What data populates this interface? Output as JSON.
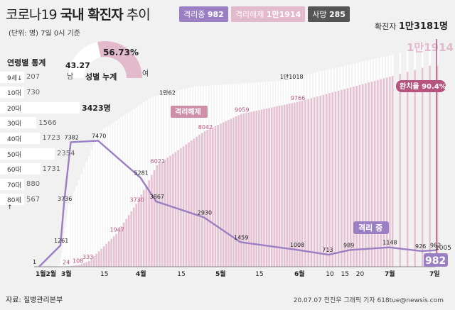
{
  "title": {
    "main_a": "코로나19 ",
    "main_b": "국내 확진자",
    "main_c": " 추이"
  },
  "unit_note": "(단위: 명) 7일 0시 기준",
  "badges": {
    "isolating": {
      "label": "격리중",
      "value": "982"
    },
    "released": {
      "label": "격리해제",
      "value": "1만1914"
    },
    "deaths": {
      "label": "사망",
      "value": "285"
    }
  },
  "total": {
    "label": "확진자",
    "value": "1만3181명"
  },
  "age_stats": {
    "title": "연령별 통계",
    "rows": [
      {
        "label": "9세↓",
        "value": "207",
        "n": 207
      },
      {
        "label": "10대",
        "value": "730",
        "n": 730
      },
      {
        "label": "20대",
        "value": "3423명",
        "n": 3423
      },
      {
        "label": "30대",
        "value": "1566",
        "n": 1566
      },
      {
        "label": "40대",
        "value": "1723",
        "n": 1723
      },
      {
        "label": "50대",
        "value": "2354",
        "n": 2354
      },
      {
        "label": "60대",
        "value": "1731",
        "n": 1731
      },
      {
        "label": "70대",
        "value": "880",
        "n": 880
      },
      {
        "label": "80세↑",
        "value": "567",
        "n": 567
      }
    ]
  },
  "sex_stats": {
    "title": "성별 누계",
    "male_pct": "43.27",
    "female_pct": "56.73%",
    "male_label": "남",
    "female_label": "여",
    "female_fraction": 0.5673
  },
  "colors": {
    "isolating": "#9b7fc3",
    "released": "#e3b9cc",
    "deaths": "#555555",
    "total_bar": "#ffffff",
    "accent": "#b5547c"
  },
  "chart_data": {
    "type": "bar",
    "title": "코로나19 국내 확진자 추이",
    "ylim": [
      0,
      13500
    ],
    "x_ticks": [
      "1월2월",
      "3월",
      "15",
      "4월",
      "15",
      "5월",
      "15",
      "6월",
      "10",
      "15",
      "20",
      "7월",
      "7일"
    ],
    "series": [
      {
        "name": "격리해제",
        "points": [
          {
            "x": "03-01",
            "y": 24
          },
          {
            "x": "03-05",
            "y": 108
          },
          {
            "x": "03-09",
            "y": 333
          },
          {
            "x": "03-20",
            "y": 1947
          },
          {
            "x": "03-28",
            "y": 3730
          },
          {
            "x": "04-06",
            "y": 6021
          },
          {
            "x": "04-24",
            "y": 8042
          },
          {
            "x": "05-08",
            "y": 9059
          },
          {
            "x": "05-30",
            "y": 9766
          },
          {
            "x": "07-06",
            "y": 11914
          }
        ]
      },
      {
        "name": "격리 중",
        "points": [
          {
            "x": "01-20",
            "y": 1
          },
          {
            "x": "02-21",
            "y": 1261
          },
          {
            "x": "02-25",
            "y": 3736
          },
          {
            "x": "03-02",
            "y": 7382
          },
          {
            "x": "03-13",
            "y": 7470
          },
          {
            "x": "03-30",
            "y": 5281
          },
          {
            "x": "04-06",
            "y": 3867
          },
          {
            "x": "04-24",
            "y": 2930
          },
          {
            "x": "05-08",
            "y": 1459
          },
          {
            "x": "05-30",
            "y": 1008
          },
          {
            "x": "06-10",
            "y": 713
          },
          {
            "x": "06-17",
            "y": 989
          },
          {
            "x": "06-30",
            "y": 1148
          },
          {
            "x": "07-05",
            "y": 926
          },
          {
            "x": "07-07",
            "y": 982
          }
        ]
      },
      {
        "name": "확진자",
        "points": [
          {
            "x": "04-04",
            "y": 10062
          },
          {
            "x": "05-23",
            "y": 11018
          },
          {
            "x": "07-07",
            "y": 13181
          }
        ]
      }
    ],
    "annotations": [
      "1만62",
      "1만1018",
      "1만1914",
      "982",
      "1005",
      "완치율 90.4%",
      "격리해제",
      "격리 중"
    ]
  },
  "source": "자료: 질병관리본부",
  "credit": "20.07.07 전진우 그래픽 기자 618tue@newsis.com"
}
